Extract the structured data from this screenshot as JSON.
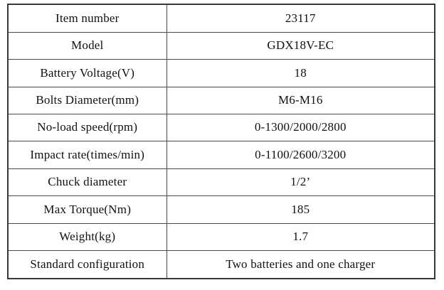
{
  "page": {
    "background_color": "#ffffff",
    "text_color": "#111111",
    "border_color": "#4a4a4a",
    "outer_border_color": "#383838"
  },
  "table": {
    "name": "product-specifications",
    "columns": [
      "label",
      "value"
    ],
    "rows": [
      {
        "label": "Item number",
        "value": "23117"
      },
      {
        "label": "Model",
        "value": "GDX18V-EC"
      },
      {
        "label": "Battery Voltage(V)",
        "value": "18"
      },
      {
        "label": "Bolts Diameter(mm)",
        "value": "M6-M16"
      },
      {
        "label": "No-load speed(rpm)",
        "value": "0-1300/2000/2800"
      },
      {
        "label": "Impact rate(times/min)",
        "value": "0-1100/2600/3200"
      },
      {
        "label": "Chuck diameter",
        "value": "1/2’"
      },
      {
        "label": "Max Torque(Nm)",
        "value": "185"
      },
      {
        "label": "Weight(kg)",
        "value": "1.7"
      },
      {
        "label": "Standard configuration",
        "value": "Two batteries and one charger"
      }
    ]
  }
}
